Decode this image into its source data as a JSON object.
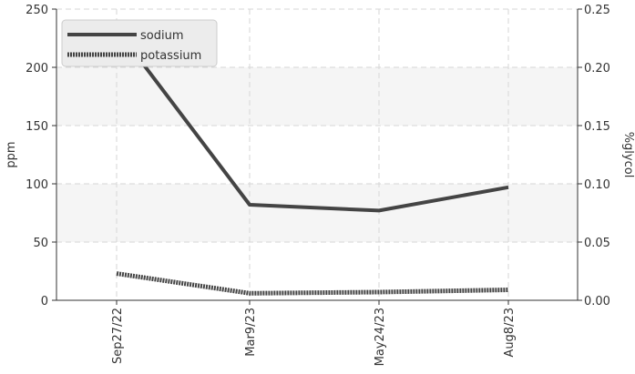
{
  "chart_data": {
    "type": "line",
    "categories": [
      "Sep27/22",
      "Mar9/23",
      "May24/23",
      "Aug8/23"
    ],
    "series": [
      {
        "name": "sodium",
        "values": [
          233,
          82,
          77,
          97
        ],
        "axis": "left",
        "style": "solid",
        "color": "#444444"
      },
      {
        "name": "potassium",
        "values": [
          23,
          6,
          7,
          9
        ],
        "axis": "left",
        "style": "dotted",
        "color": "#444444"
      }
    ],
    "ylabel": "ppm",
    "ylabel_right": "%glycol",
    "ylim": [
      0,
      250
    ],
    "ylim_right": [
      0,
      0.25
    ],
    "y_ticks": [
      "0",
      "50",
      "100",
      "150",
      "200",
      "250"
    ],
    "y_ticks_right": [
      "0.00",
      "0.05",
      "0.10",
      "0.15",
      "0.20",
      "0.25"
    ],
    "grid": true,
    "band_colors": [
      "#ffffff",
      "#f5f5f5"
    ],
    "legend_position": "top-left"
  }
}
